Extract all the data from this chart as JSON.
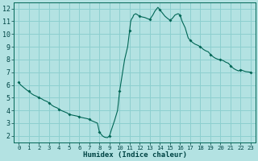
{
  "xlabel": "Humidex (Indice chaleur)",
  "background_color": "#b3e2e2",
  "grid_color": "#8dcfcf",
  "line_color": "#006655",
  "marker_color": "#006655",
  "xlim": [
    -0.5,
    23.5
  ],
  "ylim": [
    1.5,
    12.5
  ],
  "yticks": [
    2,
    3,
    4,
    5,
    6,
    7,
    8,
    9,
    10,
    11,
    12
  ],
  "xticks": [
    0,
    1,
    2,
    3,
    4,
    5,
    6,
    7,
    8,
    9,
    10,
    11,
    12,
    13,
    14,
    15,
    16,
    17,
    18,
    19,
    20,
    21,
    22,
    23
  ],
  "x": [
    0,
    0.2,
    0.5,
    0.8,
    1,
    1.3,
    1.5,
    1.8,
    2,
    2.3,
    2.5,
    2.8,
    3,
    3.3,
    3.5,
    3.8,
    4,
    4.2,
    4.5,
    4.8,
    5,
    5.2,
    5.5,
    5.8,
    6,
    6.2,
    6.5,
    6.8,
    7,
    7.2,
    7.5,
    7.8,
    8,
    8.1,
    8.2,
    8.3,
    8.5,
    8.6,
    8.7,
    8.8,
    9,
    9.2,
    9.5,
    9.8,
    10,
    10.3,
    10.5,
    10.8,
    11,
    11.1,
    11.15,
    11.2,
    11.25,
    11.3,
    11.35,
    11.4,
    11.5,
    11.6,
    11.8,
    12,
    12.2,
    12.5,
    12.8,
    13,
    13.3,
    13.5,
    13.8,
    14,
    14.3,
    14.5,
    14.8,
    15,
    15.2,
    15.5,
    15.8,
    16,
    16.2,
    16.5,
    16.8,
    17,
    17.3,
    17.5,
    17.8,
    18,
    18.3,
    18.5,
    18.8,
    19,
    19.3,
    19.5,
    19.8,
    20,
    20.3,
    20.5,
    20.8,
    21,
    21.3,
    21.5,
    21.8,
    22,
    22.3,
    22.5,
    22.8,
    23
  ],
  "y": [
    6.2,
    6.0,
    5.8,
    5.6,
    5.5,
    5.3,
    5.2,
    5.1,
    5.0,
    4.9,
    4.8,
    4.7,
    4.6,
    4.4,
    4.3,
    4.2,
    4.1,
    4.0,
    3.9,
    3.8,
    3.7,
    3.65,
    3.6,
    3.55,
    3.5,
    3.45,
    3.4,
    3.35,
    3.3,
    3.2,
    3.1,
    3.0,
    2.3,
    2.2,
    2.1,
    2.0,
    1.9,
    1.88,
    1.87,
    1.86,
    2.0,
    2.5,
    3.2,
    4.0,
    5.5,
    7.0,
    8.0,
    9.0,
    10.3,
    11.0,
    11.1,
    11.2,
    11.25,
    11.3,
    11.4,
    11.5,
    11.55,
    11.6,
    11.5,
    11.4,
    11.35,
    11.3,
    11.2,
    11.15,
    11.5,
    11.8,
    12.1,
    11.9,
    11.6,
    11.4,
    11.2,
    11.1,
    11.2,
    11.5,
    11.6,
    11.5,
    11.0,
    10.5,
    9.7,
    9.5,
    9.3,
    9.2,
    9.1,
    9.0,
    8.8,
    8.7,
    8.6,
    8.4,
    8.2,
    8.1,
    8.0,
    8.0,
    7.9,
    7.8,
    7.7,
    7.5,
    7.3,
    7.2,
    7.1,
    7.2,
    7.1,
    7.05,
    7.02,
    7.0
  ],
  "marker_x": [
    0,
    1,
    2,
    3,
    4,
    5,
    6,
    7,
    8,
    9,
    10,
    11,
    12,
    13,
    14,
    15,
    16,
    17,
    18,
    19,
    20,
    21,
    22,
    23
  ],
  "marker_y": [
    6.2,
    5.5,
    5.0,
    4.6,
    4.1,
    3.7,
    3.5,
    3.3,
    2.3,
    2.0,
    5.5,
    10.3,
    11.4,
    11.15,
    11.9,
    11.1,
    11.5,
    9.5,
    9.0,
    8.4,
    8.0,
    7.5,
    7.2,
    7.0
  ]
}
